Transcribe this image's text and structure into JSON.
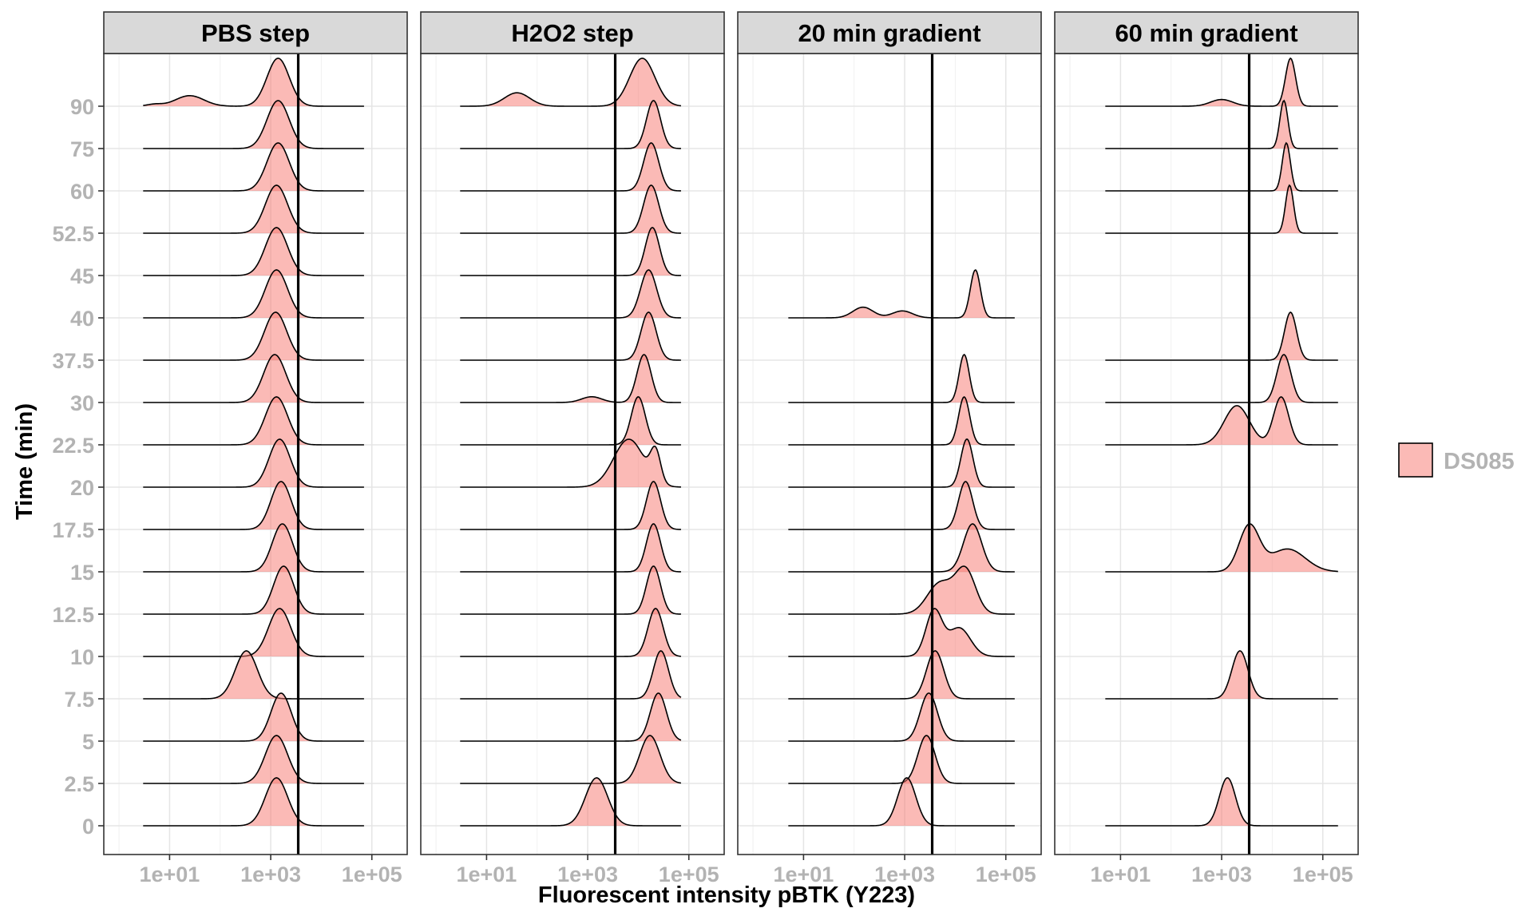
{
  "chart_data": {
    "type": "ridgeline-density",
    "xlabel": "Fluorescent intensity pBTK (Y223)",
    "ylabel": "Time (min)",
    "x_scale": "log10",
    "xlim": [
      0.5,
      500000
    ],
    "x_ticks": [
      10,
      1000,
      100000
    ],
    "x_tick_labels": [
      "1e+01",
      "1e+03",
      "1e+05"
    ],
    "y_levels": [
      "0",
      "2.5",
      "5",
      "7.5",
      "10",
      "12.5",
      "15",
      "17.5",
      "20",
      "22.5",
      "30",
      "37.5",
      "40",
      "45",
      "52.5",
      "60",
      "75",
      "90"
    ],
    "grid": true,
    "legend": {
      "position": "right",
      "entries": [
        {
          "label": "DS085",
          "color": "#f8766d"
        }
      ]
    },
    "fill_color": "#f8766d",
    "fill_opacity": 0.5,
    "line_color": "#000000",
    "panels": [
      {
        "title": "PBS step",
        "threshold": 3500,
        "x_range": [
          3,
          70000
        ],
        "ridges": [
          {
            "time": "0",
            "peaks": [
              {
                "center": 1300,
                "width": 0.22,
                "weight": 1
              }
            ]
          },
          {
            "time": "2.5",
            "peaks": [
              {
                "center": 1300,
                "width": 0.22,
                "weight": 1
              }
            ]
          },
          {
            "time": "5",
            "peaks": [
              {
                "center": 1600,
                "width": 0.2,
                "weight": 1
              }
            ]
          },
          {
            "time": "7.5",
            "peaks": [
              {
                "center": 330,
                "width": 0.22,
                "weight": 1
              }
            ]
          },
          {
            "time": "10",
            "peaks": [
              {
                "center": 1500,
                "width": 0.22,
                "weight": 1
              }
            ]
          },
          {
            "time": "12.5",
            "peaks": [
              {
                "center": 1800,
                "width": 0.2,
                "weight": 1
              }
            ]
          },
          {
            "time": "15",
            "peaks": [
              {
                "center": 1700,
                "width": 0.2,
                "weight": 1
              }
            ]
          },
          {
            "time": "17.5",
            "peaks": [
              {
                "center": 1600,
                "width": 0.2,
                "weight": 1
              }
            ]
          },
          {
            "time": "20",
            "peaks": [
              {
                "center": 1500,
                "width": 0.21,
                "weight": 1
              }
            ]
          },
          {
            "time": "22.5",
            "peaks": [
              {
                "center": 1300,
                "width": 0.22,
                "weight": 1
              }
            ]
          },
          {
            "time": "30",
            "peaks": [
              {
                "center": 1200,
                "width": 0.22,
                "weight": 1
              }
            ]
          },
          {
            "time": "37.5",
            "peaks": [
              {
                "center": 1250,
                "width": 0.22,
                "weight": 1
              }
            ]
          },
          {
            "time": "40",
            "peaks": [
              {
                "center": 1300,
                "width": 0.22,
                "weight": 1
              }
            ]
          },
          {
            "time": "45",
            "peaks": [
              {
                "center": 1300,
                "width": 0.22,
                "weight": 1
              }
            ]
          },
          {
            "time": "52.5",
            "peaks": [
              {
                "center": 1300,
                "width": 0.22,
                "weight": 1
              }
            ]
          },
          {
            "time": "60",
            "peaks": [
              {
                "center": 1400,
                "width": 0.22,
                "weight": 1
              }
            ]
          },
          {
            "time": "75",
            "peaks": [
              {
                "center": 1400,
                "width": 0.22,
                "weight": 1
              }
            ]
          },
          {
            "time": "90",
            "peaks": [
              {
                "center": 1400,
                "width": 0.22,
                "weight": 1
              },
              {
                "center": 25,
                "width": 0.28,
                "weight": 0.22
              },
              {
                "center": 5,
                "width": 0.15,
                "weight": 0.04
              }
            ]
          }
        ]
      },
      {
        "title": "H2O2 step",
        "threshold": 3500,
        "x_range": [
          3,
          70000
        ],
        "ridges": [
          {
            "time": "0",
            "peaks": [
              {
                "center": 1500,
                "width": 0.22,
                "weight": 1
              }
            ]
          },
          {
            "time": "2.5",
            "peaks": [
              {
                "center": 17000,
                "width": 0.2,
                "weight": 1
              }
            ]
          },
          {
            "time": "5",
            "peaks": [
              {
                "center": 25000,
                "width": 0.16,
                "weight": 1
              }
            ]
          },
          {
            "time": "7.5",
            "peaks": [
              {
                "center": 28000,
                "width": 0.15,
                "weight": 1
              }
            ]
          },
          {
            "time": "10",
            "peaks": [
              {
                "center": 22000,
                "width": 0.15,
                "weight": 1
              }
            ]
          },
          {
            "time": "12.5",
            "peaks": [
              {
                "center": 20000,
                "width": 0.14,
                "weight": 1
              }
            ]
          },
          {
            "time": "15",
            "peaks": [
              {
                "center": 20000,
                "width": 0.14,
                "weight": 1
              }
            ]
          },
          {
            "time": "17.5",
            "peaks": [
              {
                "center": 20000,
                "width": 0.14,
                "weight": 1
              }
            ]
          },
          {
            "time": "20",
            "peaks": [
              {
                "center": 6500,
                "width": 0.3,
                "weight": 0.95
              },
              {
                "center": 22000,
                "width": 0.1,
                "weight": 0.6
              }
            ]
          },
          {
            "time": "22.5",
            "peaks": [
              {
                "center": 10000,
                "width": 0.14,
                "weight": 1
              }
            ]
          },
          {
            "time": "30",
            "peaks": [
              {
                "center": 13000,
                "width": 0.14,
                "weight": 1
              },
              {
                "center": 1200,
                "width": 0.2,
                "weight": 0.12
              }
            ]
          },
          {
            "time": "37.5",
            "peaks": [
              {
                "center": 16000,
                "width": 0.15,
                "weight": 1
              }
            ]
          },
          {
            "time": "40",
            "peaks": [
              {
                "center": 16000,
                "width": 0.16,
                "weight": 1
              }
            ]
          },
          {
            "time": "45",
            "peaks": [
              {
                "center": 19000,
                "width": 0.14,
                "weight": 1
              }
            ]
          },
          {
            "time": "52.5",
            "peaks": [
              {
                "center": 18000,
                "width": 0.15,
                "weight": 1
              }
            ]
          },
          {
            "time": "60",
            "peaks": [
              {
                "center": 18000,
                "width": 0.15,
                "weight": 1
              }
            ]
          },
          {
            "time": "75",
            "peaks": [
              {
                "center": 20000,
                "width": 0.14,
                "weight": 1
              }
            ]
          },
          {
            "time": "90",
            "peaks": [
              {
                "center": 12000,
                "width": 0.25,
                "weight": 1
              },
              {
                "center": 40,
                "width": 0.25,
                "weight": 0.28
              }
            ]
          }
        ]
      },
      {
        "title": "20 min gradient",
        "threshold": 3500,
        "x_range": [
          5,
          150000
        ],
        "ridges": [
          {
            "time": "0",
            "peaks": [
              {
                "center": 1100,
                "width": 0.18,
                "weight": 1
              }
            ]
          },
          {
            "time": "2.5",
            "peaks": [
              {
                "center": 2700,
                "width": 0.17,
                "weight": 1
              }
            ]
          },
          {
            "time": "5",
            "peaks": [
              {
                "center": 3000,
                "width": 0.17,
                "weight": 1
              }
            ]
          },
          {
            "time": "7.5",
            "peaks": [
              {
                "center": 4000,
                "width": 0.17,
                "weight": 1
              }
            ]
          },
          {
            "time": "10",
            "peaks": [
              {
                "center": 3800,
                "width": 0.16,
                "weight": 0.8
              },
              {
                "center": 12000,
                "width": 0.22,
                "weight": 0.5
              }
            ]
          },
          {
            "time": "12.5",
            "peaks": [
              {
                "center": 5000,
                "width": 0.25,
                "weight": 0.5
              },
              {
                "center": 16000,
                "width": 0.2,
                "weight": 0.7
              }
            ]
          },
          {
            "time": "15",
            "peaks": [
              {
                "center": 22000,
                "width": 0.18,
                "weight": 1
              }
            ]
          },
          {
            "time": "17.5",
            "peaks": [
              {
                "center": 16000,
                "width": 0.14,
                "weight": 1
              }
            ]
          },
          {
            "time": "20",
            "peaks": [
              {
                "center": 17000,
                "width": 0.12,
                "weight": 1
              }
            ]
          },
          {
            "time": "22.5",
            "peaks": [
              {
                "center": 15000,
                "width": 0.11,
                "weight": 1
              }
            ]
          },
          {
            "time": "30",
            "peaks": [
              {
                "center": 15000,
                "width": 0.1,
                "weight": 1
              }
            ]
          },
          {
            "time": "40",
            "peaks": [
              {
                "center": 25000,
                "width": 0.1,
                "weight": 0.9
              },
              {
                "center": 150,
                "width": 0.2,
                "weight": 0.2
              },
              {
                "center": 900,
                "width": 0.2,
                "weight": 0.13
              }
            ]
          }
        ]
      },
      {
        "title": "60 min gradient",
        "threshold": 3500,
        "x_range": [
          5,
          200000
        ],
        "ridges": [
          {
            "time": "0",
            "peaks": [
              {
                "center": 1300,
                "width": 0.16,
                "weight": 1
              }
            ]
          },
          {
            "time": "7.5",
            "peaks": [
              {
                "center": 2300,
                "width": 0.16,
                "weight": 1
              }
            ]
          },
          {
            "time": "15",
            "peaks": [
              {
                "center": 3500,
                "width": 0.2,
                "weight": 0.5
              },
              {
                "center": 20000,
                "width": 0.35,
                "weight": 0.25
              }
            ]
          },
          {
            "time": "22.5",
            "peaks": [
              {
                "center": 2000,
                "width": 0.25,
                "weight": 0.45
              },
              {
                "center": 15000,
                "width": 0.15,
                "weight": 0.55
              }
            ]
          },
          {
            "time": "30",
            "peaks": [
              {
                "center": 17000,
                "width": 0.14,
                "weight": 1
              }
            ]
          },
          {
            "time": "37.5",
            "peaks": [
              {
                "center": 23000,
                "width": 0.12,
                "weight": 1
              }
            ]
          },
          {
            "time": "52.5",
            "peaks": [
              {
                "center": 22000,
                "width": 0.08,
                "weight": 1
              }
            ]
          },
          {
            "time": "60",
            "peaks": [
              {
                "center": 19000,
                "width": 0.08,
                "weight": 1
              }
            ]
          },
          {
            "time": "75",
            "peaks": [
              {
                "center": 17000,
                "width": 0.08,
                "weight": 1
              }
            ]
          },
          {
            "time": "90",
            "peaks": [
              {
                "center": 23000,
                "width": 0.1,
                "weight": 1
              },
              {
                "center": 1000,
                "width": 0.22,
                "weight": 0.14
              }
            ]
          }
        ]
      }
    ]
  }
}
